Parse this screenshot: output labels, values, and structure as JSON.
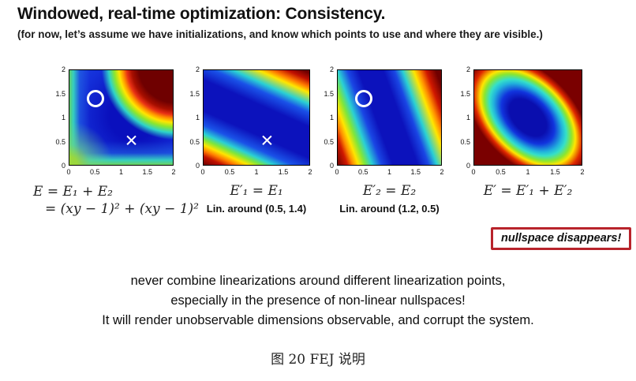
{
  "slide": {
    "title": "Windowed, real-time optimization: Consistency.",
    "subtitle": "(for now, let’s assume we have initializations, and know which points to use and where they are visible.)",
    "nullspace_note": "nullspace disappears!",
    "warning_lines": [
      "never combine linearizations around different linearization points,",
      "especially in the presence of non-linear nullspaces!",
      "It will render unobservable dimensions observable, and corrupt the system."
    ]
  },
  "figure_caption": "图 20 FEJ 说明",
  "chart_data": [
    {
      "type": "heatmap",
      "name": "original-cost",
      "colormap": "jet",
      "xlim": [
        0,
        2
      ],
      "ylim": [
        0,
        2
      ],
      "x_ticks": [
        "0",
        "0.5",
        "1",
        "1.5",
        "2"
      ],
      "y_ticks": [
        "2",
        "1.5",
        "1",
        "0.5",
        "0"
      ],
      "pattern": "hyperbolic valley; dark red high-cost region in top-right corner with rainbow fringe, cyan-green strips along left and bottom edges, dark blue elsewhere",
      "markers": [
        {
          "shape": "circle",
          "x": 0.5,
          "y": 1.4,
          "color": "#ffffff"
        },
        {
          "shape": "cross",
          "x": 1.2,
          "y": 0.5,
          "color": "#ffffff"
        }
      ],
      "equation_lines": [
        "E = E₁ + E₂",
        "= (xy − 1)² + (xy − 1)²"
      ],
      "note": ""
    },
    {
      "type": "heatmap",
      "name": "linearized-E1",
      "colormap": "jet",
      "xlim": [
        0,
        2
      ],
      "ylim": [
        0,
        2
      ],
      "x_ticks": [
        "0",
        "0.5",
        "1",
        "1.5",
        "2"
      ],
      "y_ticks": [
        "2",
        "1.5",
        "1",
        "0.5",
        "0"
      ],
      "pattern": "shallow straight diagonal bands; dark red in top-right and bottom-left corners, broad dark blue central band",
      "markers": [
        {
          "shape": "cross",
          "x": 1.2,
          "y": 0.5,
          "color": "#ffffff"
        }
      ],
      "equation_lines": [
        "E′₁ = E₁"
      ],
      "note": "Lin. around (0.5, 1.4)"
    },
    {
      "type": "heatmap",
      "name": "linearized-E2",
      "colormap": "jet",
      "xlim": [
        0,
        2
      ],
      "ylim": [
        0,
        2
      ],
      "x_ticks": [
        "0",
        "0.5",
        "1",
        "1.5",
        "2"
      ],
      "y_ticks": [
        "2",
        "1.5",
        "1",
        "0.5",
        "0"
      ],
      "pattern": "steep straight diagonal bands; dark red at bottom-left corner and right side, dark blue central band",
      "markers": [
        {
          "shape": "circle",
          "x": 0.5,
          "y": 1.4,
          "color": "#ffffff"
        }
      ],
      "equation_lines": [
        "E′₂ = E₂"
      ],
      "note": "Lin. around (1.2, 0.5)"
    },
    {
      "type": "heatmap",
      "name": "combined-linearized",
      "colormap": "jet",
      "xlim": [
        0,
        2
      ],
      "ylim": [
        0,
        2
      ],
      "x_ticks": [
        "0",
        "0.5",
        "1",
        "1.5",
        "2"
      ],
      "y_ticks": [
        "2",
        "1.5",
        "1",
        "0.5",
        "0"
      ],
      "pattern": "elliptical bowl tilted 45°; dark blue minimum near (1,1), rainbow rings, dark red corners — nullspace disappears",
      "markers": [],
      "equation_lines": [
        "E′ = E′₁ + E′₂"
      ],
      "note": ""
    }
  ],
  "colors": {
    "callout_border_red": "#b8232b",
    "marker_white": "#ffffff"
  }
}
